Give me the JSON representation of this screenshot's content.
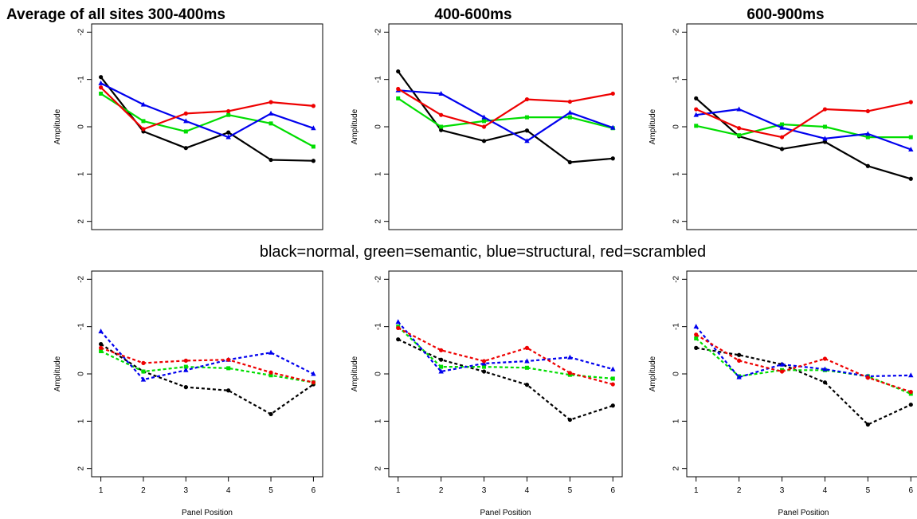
{
  "figure": {
    "legend_text": "black=normal, green=semantic, blue=structural, red=scrambled"
  },
  "colors": {
    "normal": "#000000",
    "semantic": "#00dd00",
    "structural": "#0000ee",
    "scrambled": "#ee0000"
  },
  "chart_data": [
    {
      "type": "line",
      "title": "Average of all sites 300-400ms",
      "xlabel": "",
      "ylabel": "Amplitude",
      "x": [
        1,
        2,
        3,
        4,
        5,
        6
      ],
      "ylim": [
        2,
        -2
      ],
      "yticks": [
        -2,
        -1,
        0,
        1,
        2
      ],
      "xticks": [],
      "line_style": "solid",
      "series": [
        {
          "name": "normal",
          "values": [
            -1.05,
            0.1,
            0.45,
            0.12,
            0.7,
            0.72
          ]
        },
        {
          "name": "semantic",
          "values": [
            -0.7,
            -0.12,
            0.1,
            -0.25,
            -0.07,
            0.42
          ]
        },
        {
          "name": "structural",
          "values": [
            -0.92,
            -0.47,
            -0.12,
            0.22,
            -0.28,
            0.03
          ]
        },
        {
          "name": "scrambled",
          "values": [
            -0.83,
            0.05,
            -0.28,
            -0.33,
            -0.52,
            -0.44
          ]
        }
      ]
    },
    {
      "type": "line",
      "title": "400-600ms",
      "xlabel": "",
      "ylabel": "Amplitude",
      "x": [
        1,
        2,
        3,
        4,
        5,
        6
      ],
      "ylim": [
        2,
        -2
      ],
      "yticks": [
        -2,
        -1,
        0,
        1,
        2
      ],
      "xticks": [],
      "line_style": "solid",
      "series": [
        {
          "name": "normal",
          "values": [
            -1.17,
            0.07,
            0.3,
            0.08,
            0.75,
            0.67
          ]
        },
        {
          "name": "semantic",
          "values": [
            -0.6,
            0.0,
            -0.12,
            -0.2,
            -0.2,
            0.03
          ]
        },
        {
          "name": "structural",
          "values": [
            -0.77,
            -0.7,
            -0.2,
            0.3,
            -0.3,
            0.02
          ]
        },
        {
          "name": "scrambled",
          "values": [
            -0.8,
            -0.25,
            0.0,
            -0.58,
            -0.53,
            -0.7
          ]
        }
      ]
    },
    {
      "type": "line",
      "title": "600-900ms",
      "xlabel": "",
      "ylabel": "Amplitude",
      "x": [
        1,
        2,
        3,
        4,
        5,
        6
      ],
      "ylim": [
        2,
        -2
      ],
      "yticks": [
        -2,
        -1,
        0,
        1,
        2
      ],
      "xticks": [],
      "line_style": "solid",
      "series": [
        {
          "name": "normal",
          "values": [
            -0.6,
            0.2,
            0.47,
            0.32,
            0.83,
            1.1
          ]
        },
        {
          "name": "semantic",
          "values": [
            -0.02,
            0.18,
            -0.05,
            0.0,
            0.22,
            0.22
          ]
        },
        {
          "name": "structural",
          "values": [
            -0.25,
            -0.37,
            0.02,
            0.25,
            0.15,
            0.48
          ]
        },
        {
          "name": "scrambled",
          "values": [
            -0.37,
            0.03,
            0.22,
            -0.37,
            -0.33,
            -0.52
          ]
        }
      ]
    },
    {
      "type": "line",
      "title": "",
      "xlabel": "Panel Position",
      "ylabel": "Amplitude",
      "x": [
        1,
        2,
        3,
        4,
        5,
        6
      ],
      "ylim": [
        2,
        -2
      ],
      "yticks": [
        -2,
        -1,
        0,
        1,
        2
      ],
      "xticks": [
        1,
        2,
        3,
        4,
        5,
        6
      ],
      "line_style": "dashed",
      "series": [
        {
          "name": "normal",
          "values": [
            -0.63,
            -0.05,
            0.28,
            0.35,
            0.85,
            0.22
          ]
        },
        {
          "name": "semantic",
          "values": [
            -0.48,
            -0.05,
            -0.15,
            -0.12,
            0.03,
            0.18
          ]
        },
        {
          "name": "structural",
          "values": [
            -0.9,
            0.12,
            -0.08,
            -0.3,
            -0.45,
            0.0
          ]
        },
        {
          "name": "scrambled",
          "values": [
            -0.55,
            -0.23,
            -0.28,
            -0.3,
            -0.03,
            0.18
          ]
        }
      ]
    },
    {
      "type": "line",
      "title": "",
      "xlabel": "Panel Position",
      "ylabel": "Amplitude",
      "x": [
        1,
        2,
        3,
        4,
        5,
        6
      ],
      "ylim": [
        2,
        -2
      ],
      "yticks": [
        -2,
        -1,
        0,
        1,
        2
      ],
      "xticks": [
        1,
        2,
        3,
        4,
        5,
        6
      ],
      "line_style": "dashed",
      "series": [
        {
          "name": "normal",
          "values": [
            -0.73,
            -0.3,
            -0.05,
            0.23,
            0.97,
            0.67
          ]
        },
        {
          "name": "semantic",
          "values": [
            -1.0,
            -0.15,
            -0.15,
            -0.13,
            0.02,
            0.1
          ]
        },
        {
          "name": "structural",
          "values": [
            -1.1,
            -0.05,
            -0.22,
            -0.27,
            -0.35,
            -0.1
          ]
        },
        {
          "name": "scrambled",
          "values": [
            -0.97,
            -0.5,
            -0.27,
            -0.55,
            -0.02,
            0.22
          ]
        }
      ]
    },
    {
      "type": "line",
      "title": "",
      "xlabel": "Panel Position",
      "ylabel": "Amplitude",
      "x": [
        1,
        2,
        3,
        4,
        5,
        6
      ],
      "ylim": [
        2,
        -2
      ],
      "yticks": [
        -2,
        -1,
        0,
        1,
        2
      ],
      "xticks": [
        1,
        2,
        3,
        4,
        5,
        6
      ],
      "line_style": "dashed",
      "series": [
        {
          "name": "normal",
          "values": [
            -0.55,
            -0.4,
            -0.2,
            0.18,
            1.07,
            0.65
          ]
        },
        {
          "name": "semantic",
          "values": [
            -0.75,
            0.05,
            -0.08,
            -0.08,
            0.05,
            0.42
          ]
        },
        {
          "name": "structural",
          "values": [
            -1.0,
            0.07,
            -0.2,
            -0.1,
            0.05,
            0.03
          ]
        },
        {
          "name": "scrambled",
          "values": [
            -0.83,
            -0.28,
            -0.05,
            -0.32,
            0.08,
            0.38
          ]
        }
      ]
    }
  ]
}
